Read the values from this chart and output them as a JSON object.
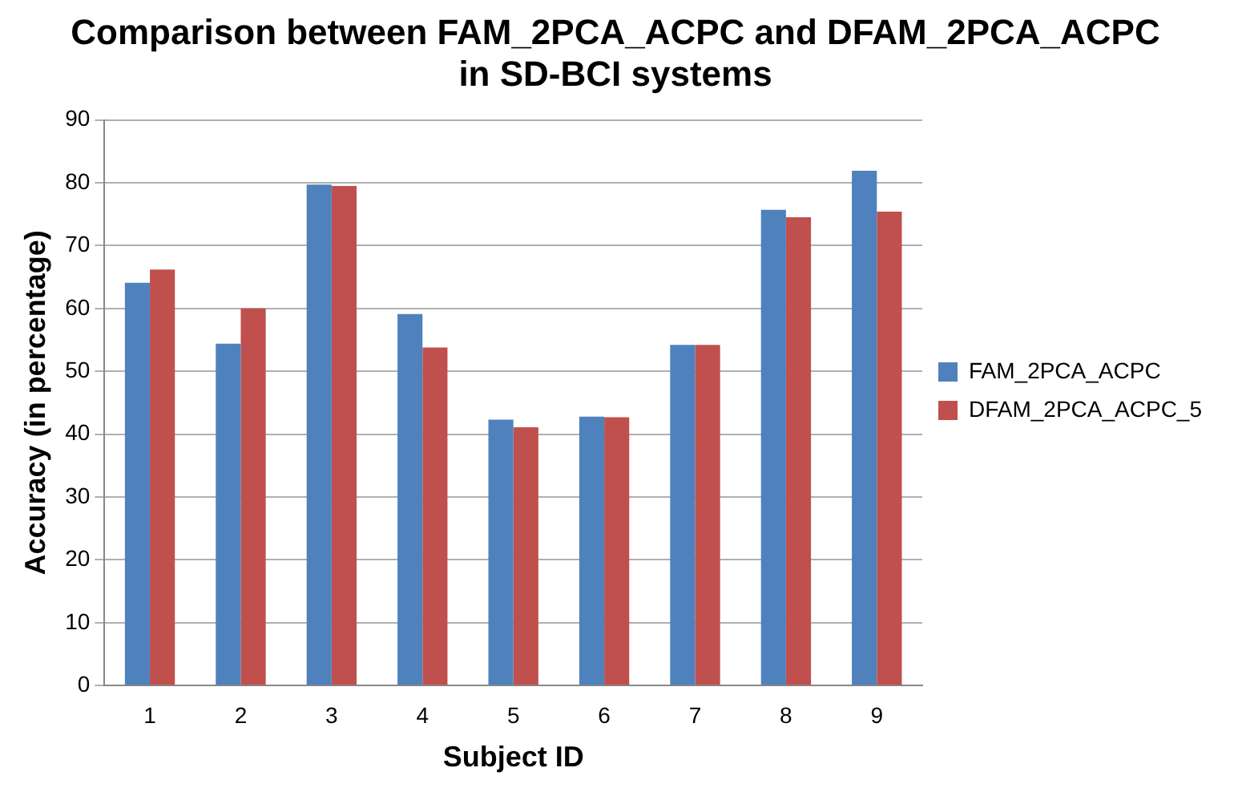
{
  "chart_data": {
    "type": "bar",
    "title": "Comparison between FAM_2PCA_ACPC and DFAM_2PCA_ACPC in SD-BCI systems",
    "xlabel": "Subject ID",
    "ylabel": "Accuracy (in percentage)",
    "categories": [
      "1",
      "2",
      "3",
      "4",
      "5",
      "6",
      "7",
      "8",
      "9"
    ],
    "series": [
      {
        "name": "FAM_2PCA_ACPC",
        "color": "#4f81bd",
        "values": [
          64.1,
          54.4,
          79.7,
          59.1,
          42.3,
          42.8,
          54.2,
          75.7,
          81.9
        ]
      },
      {
        "name": "DFAM_2PCA_ACPC_5",
        "color": "#c0504d",
        "values": [
          66.2,
          60,
          79.5,
          53.8,
          41.1,
          42.7,
          54.2,
          74.5,
          75.4
        ]
      }
    ],
    "ylim": [
      0,
      90
    ],
    "yticks": [
      0,
      10,
      20,
      30,
      40,
      50,
      60,
      70,
      80,
      90
    ],
    "grid": "y",
    "legend": "right"
  }
}
